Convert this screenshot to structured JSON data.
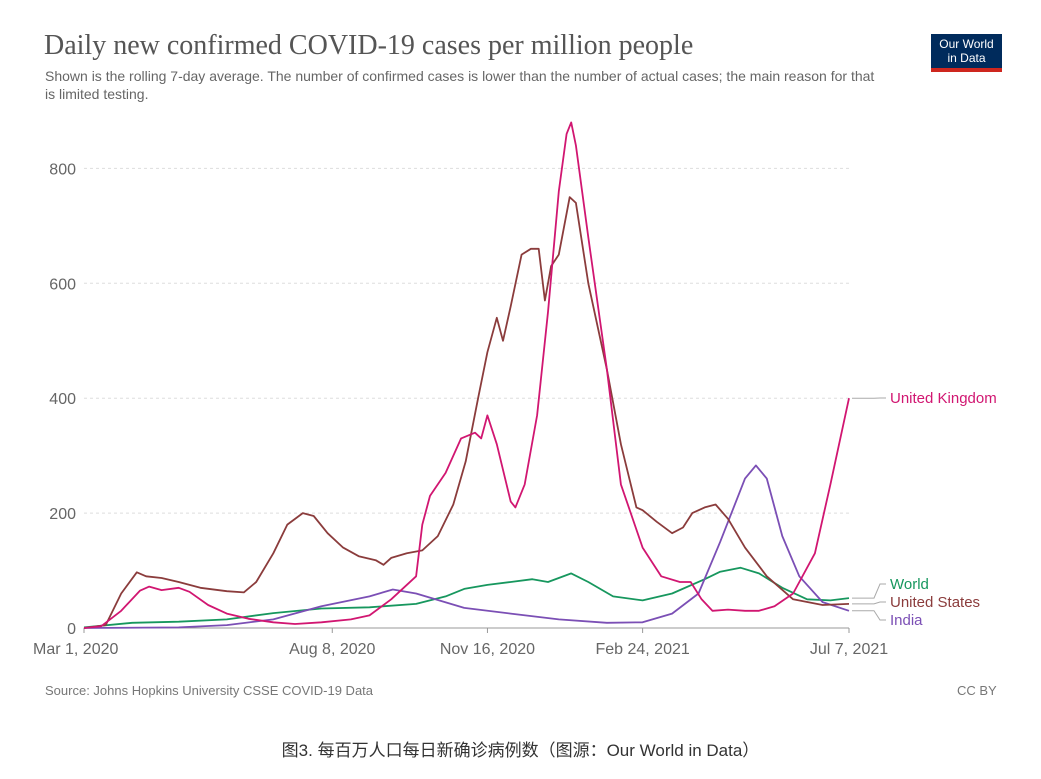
{
  "header": {
    "title": "Daily new confirmed COVID-19 cases per million people",
    "subtitle": "Shown is the rolling 7-day average. The number of confirmed cases is lower than the number of actual cases; the main reason for that is limited testing.",
    "logo_line1": "Our World",
    "logo_line2": "in Data"
  },
  "footer": {
    "source": "Source: Johns Hopkins University CSSE COVID-19 Data",
    "license": "CC BY",
    "caption": "图3. 每百万人口每日新确诊病例数（图源：Our World in Data）"
  },
  "colors": {
    "united_kingdom": "#d11671",
    "united_states": "#8b3c3c",
    "world": "#17975e",
    "india": "#7b4fb5",
    "grid": "#dddddd",
    "axis": "#666666"
  },
  "chart_data": {
    "type": "line",
    "title": "Daily new confirmed COVID-19 cases per million people",
    "xlabel": "",
    "ylabel": "",
    "ylim": [
      0,
      880
    ],
    "yticks": [
      0,
      200,
      400,
      600,
      800
    ],
    "x_range": [
      "2020-03-01",
      "2021-07-07"
    ],
    "xticks": [
      {
        "date": "2020-03-01",
        "label": "Mar 1, 2020"
      },
      {
        "date": "2020-08-08",
        "label": "Aug 8, 2020"
      },
      {
        "date": "2020-11-16",
        "label": "Nov 16, 2020"
      },
      {
        "date": "2021-02-24",
        "label": "Feb 24, 2021"
      },
      {
        "date": "2021-07-07",
        "label": "Jul 7, 2021"
      }
    ],
    "grid": "horizontal dashed",
    "legend": "line-end labels",
    "series": [
      {
        "name": "United Kingdom",
        "color": "#d11671",
        "points": [
          [
            "2020-03-01",
            0
          ],
          [
            "2020-03-12",
            3
          ],
          [
            "2020-03-25",
            30
          ],
          [
            "2020-04-06",
            65
          ],
          [
            "2020-04-12",
            72
          ],
          [
            "2020-04-20",
            66
          ],
          [
            "2020-05-01",
            70
          ],
          [
            "2020-05-08",
            63
          ],
          [
            "2020-05-20",
            40
          ],
          [
            "2020-06-01",
            25
          ],
          [
            "2020-06-15",
            16
          ],
          [
            "2020-07-01",
            10
          ],
          [
            "2020-07-15",
            7
          ],
          [
            "2020-08-01",
            10
          ],
          [
            "2020-08-20",
            15
          ],
          [
            "2020-09-01",
            22
          ],
          [
            "2020-09-15",
            50
          ],
          [
            "2020-10-01",
            90
          ],
          [
            "2020-10-05",
            180
          ],
          [
            "2020-10-10",
            230
          ],
          [
            "2020-10-20",
            270
          ],
          [
            "2020-10-30",
            330
          ],
          [
            "2020-11-08",
            340
          ],
          [
            "2020-11-12",
            330
          ],
          [
            "2020-11-16",
            370
          ],
          [
            "2020-11-22",
            320
          ],
          [
            "2020-12-01",
            220
          ],
          [
            "2020-12-04",
            210
          ],
          [
            "2020-12-10",
            250
          ],
          [
            "2020-12-18",
            370
          ],
          [
            "2020-12-25",
            550
          ],
          [
            "2021-01-01",
            760
          ],
          [
            "2021-01-06",
            860
          ],
          [
            "2021-01-09",
            880
          ],
          [
            "2021-01-12",
            840
          ],
          [
            "2021-01-20",
            680
          ],
          [
            "2021-02-01",
            450
          ],
          [
            "2021-02-10",
            250
          ],
          [
            "2021-02-24",
            140
          ],
          [
            "2021-03-08",
            90
          ],
          [
            "2021-03-20",
            80
          ],
          [
            "2021-03-27",
            80
          ],
          [
            "2021-04-03",
            50
          ],
          [
            "2021-04-10",
            30
          ],
          [
            "2021-04-20",
            32
          ],
          [
            "2021-05-01",
            30
          ],
          [
            "2021-05-10",
            30
          ],
          [
            "2021-05-20",
            38
          ],
          [
            "2021-06-01",
            60
          ],
          [
            "2021-06-15",
            130
          ],
          [
            "2021-06-25",
            250
          ],
          [
            "2021-07-07",
            400
          ]
        ]
      },
      {
        "name": "United States",
        "color": "#8b3c3c",
        "points": [
          [
            "2020-03-01",
            0
          ],
          [
            "2020-03-15",
            5
          ],
          [
            "2020-03-25",
            60
          ],
          [
            "2020-04-04",
            97
          ],
          [
            "2020-04-10",
            90
          ],
          [
            "2020-04-20",
            87
          ],
          [
            "2020-05-01",
            80
          ],
          [
            "2020-05-15",
            70
          ],
          [
            "2020-06-01",
            64
          ],
          [
            "2020-06-12",
            62
          ],
          [
            "2020-06-20",
            80
          ],
          [
            "2020-07-01",
            130
          ],
          [
            "2020-07-10",
            180
          ],
          [
            "2020-07-20",
            200
          ],
          [
            "2020-07-27",
            195
          ],
          [
            "2020-08-05",
            165
          ],
          [
            "2020-08-15",
            140
          ],
          [
            "2020-08-25",
            125
          ],
          [
            "2020-09-05",
            118
          ],
          [
            "2020-09-10",
            110
          ],
          [
            "2020-09-15",
            122
          ],
          [
            "2020-09-25",
            130
          ],
          [
            "2020-10-05",
            135
          ],
          [
            "2020-10-15",
            160
          ],
          [
            "2020-10-25",
            215
          ],
          [
            "2020-11-02",
            290
          ],
          [
            "2020-11-10",
            400
          ],
          [
            "2020-11-16",
            480
          ],
          [
            "2020-11-22",
            540
          ],
          [
            "2020-11-26",
            500
          ],
          [
            "2020-12-01",
            560
          ],
          [
            "2020-12-08",
            650
          ],
          [
            "2020-12-14",
            660
          ],
          [
            "2020-12-19",
            660
          ],
          [
            "2020-12-23",
            570
          ],
          [
            "2020-12-27",
            630
          ],
          [
            "2021-01-01",
            650
          ],
          [
            "2021-01-08",
            750
          ],
          [
            "2021-01-12",
            740
          ],
          [
            "2021-01-20",
            600
          ],
          [
            "2021-02-01",
            450
          ],
          [
            "2021-02-10",
            320
          ],
          [
            "2021-02-20",
            210
          ],
          [
            "2021-02-24",
            205
          ],
          [
            "2021-03-05",
            185
          ],
          [
            "2021-03-15",
            165
          ],
          [
            "2021-03-22",
            175
          ],
          [
            "2021-03-28",
            200
          ],
          [
            "2021-04-05",
            210
          ],
          [
            "2021-04-12",
            215
          ],
          [
            "2021-04-20",
            190
          ],
          [
            "2021-05-01",
            140
          ],
          [
            "2021-05-15",
            90
          ],
          [
            "2021-06-01",
            50
          ],
          [
            "2021-06-20",
            40
          ],
          [
            "2021-07-07",
            42
          ]
        ]
      },
      {
        "name": "World",
        "color": "#17975e",
        "points": [
          [
            "2020-03-01",
            1
          ],
          [
            "2020-04-01",
            9
          ],
          [
            "2020-05-01",
            11
          ],
          [
            "2020-06-01",
            15
          ],
          [
            "2020-07-01",
            26
          ],
          [
            "2020-08-01",
            34
          ],
          [
            "2020-09-01",
            36
          ],
          [
            "2020-10-01",
            42
          ],
          [
            "2020-10-20",
            55
          ],
          [
            "2020-11-01",
            68
          ],
          [
            "2020-11-16",
            75
          ],
          [
            "2020-12-01",
            80
          ],
          [
            "2020-12-15",
            85
          ],
          [
            "2020-12-25",
            80
          ],
          [
            "2021-01-09",
            95
          ],
          [
            "2021-01-20",
            80
          ],
          [
            "2021-02-05",
            55
          ],
          [
            "2021-02-24",
            48
          ],
          [
            "2021-03-15",
            60
          ],
          [
            "2021-04-05",
            85
          ],
          [
            "2021-04-15",
            98
          ],
          [
            "2021-04-28",
            105
          ],
          [
            "2021-05-10",
            95
          ],
          [
            "2021-05-25",
            70
          ],
          [
            "2021-06-10",
            50
          ],
          [
            "2021-06-25",
            48
          ],
          [
            "2021-07-07",
            52
          ]
        ]
      },
      {
        "name": "India",
        "color": "#7b4fb5",
        "points": [
          [
            "2020-03-01",
            0
          ],
          [
            "2020-05-01",
            1
          ],
          [
            "2020-06-01",
            5
          ],
          [
            "2020-07-01",
            15
          ],
          [
            "2020-08-01",
            38
          ],
          [
            "2020-09-01",
            55
          ],
          [
            "2020-09-16",
            67
          ],
          [
            "2020-10-01",
            60
          ],
          [
            "2020-11-01",
            35
          ],
          [
            "2020-12-01",
            25
          ],
          [
            "2021-01-01",
            15
          ],
          [
            "2021-02-01",
            9
          ],
          [
            "2021-02-24",
            10
          ],
          [
            "2021-03-15",
            25
          ],
          [
            "2021-04-01",
            60
          ],
          [
            "2021-04-15",
            150
          ],
          [
            "2021-05-01",
            260
          ],
          [
            "2021-05-08",
            283
          ],
          [
            "2021-05-15",
            260
          ],
          [
            "2021-05-25",
            160
          ],
          [
            "2021-06-05",
            90
          ],
          [
            "2021-06-20",
            45
          ],
          [
            "2021-07-07",
            30
          ]
        ]
      }
    ]
  }
}
